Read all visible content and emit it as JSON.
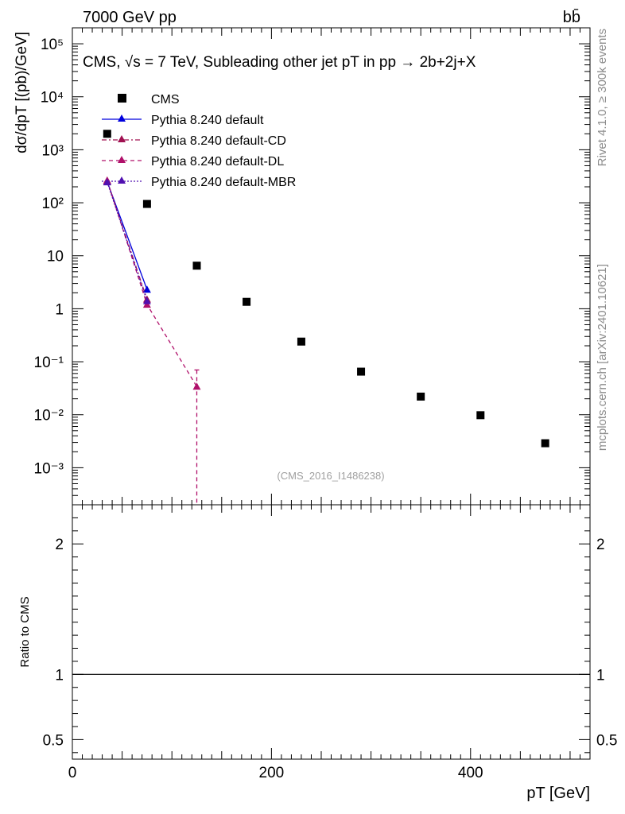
{
  "header": {
    "energy_label": "7000 GeV pp",
    "process_label": "bb̄"
  },
  "side_text": {
    "rivet": "Rivet 4.1.0, ≥ 300k events",
    "mcplots": "mcplots.cern.ch [arXiv:2401.10621]"
  },
  "chart_data": {
    "type": "scatter",
    "title": "CMS, √s = 7 TeV, Subleading other jet pT in pp → 2b+2j+X",
    "xlabel": "pT [GeV]",
    "ylabel": "dσ/dpT [(pb)/GeV]",
    "ylabel_ratio": "Ratio to CMS",
    "watermark": "(CMS_2016_I1486238)",
    "xlim": [
      0,
      520
    ],
    "ylim": [
      0.0002,
      200000
    ],
    "yscale": "log",
    "ratio_ylim": [
      0.35,
      2.3
    ],
    "x_ticks": [
      {
        "value": 0,
        "label": "0"
      },
      {
        "value": 200,
        "label": "200"
      },
      {
        "value": 400,
        "label": "400"
      }
    ],
    "y_ticks": [
      {
        "value": 0.001,
        "label": "10⁻³"
      },
      {
        "value": 0.01,
        "label": "10⁻²"
      },
      {
        "value": 0.1,
        "label": "10⁻¹"
      },
      {
        "value": 1,
        "label": "1"
      },
      {
        "value": 10,
        "label": "10"
      },
      {
        "value": 100,
        "label": "10²"
      },
      {
        "value": 1000,
        "label": "10³"
      },
      {
        "value": 10000,
        "label": "10⁴"
      },
      {
        "value": 100000,
        "label": "10⁵"
      }
    ],
    "ratio_ticks": [
      {
        "value": 0.5,
        "label": "0.5"
      },
      {
        "value": 1,
        "label": "1"
      },
      {
        "value": 2,
        "label": "2"
      }
    ],
    "legend_position": "top-left",
    "series": [
      {
        "name": "CMS",
        "style": "marker",
        "color": "#000000",
        "x": [
          35,
          75,
          125,
          175,
          230,
          290,
          350,
          410,
          475
        ],
        "y": [
          2000,
          95,
          6.5,
          1.35,
          0.24,
          0.065,
          0.022,
          0.0098,
          0.0029
        ]
      },
      {
        "name": "Pythia 8.240 default",
        "style": "solid",
        "color": "#0000dd",
        "x": [
          35,
          75
        ],
        "y": [
          250,
          2.3
        ]
      },
      {
        "name": "Pythia 8.240 default-CD",
        "style": "dashdot",
        "color": "#a01050",
        "x": [
          35,
          75
        ],
        "y": [
          255,
          1.5
        ]
      },
      {
        "name": "Pythia 8.240 default-DL",
        "style": "dashed",
        "color": "#b0106a",
        "x": [
          35,
          75,
          125
        ],
        "y": [
          265,
          1.2,
          0.034
        ],
        "error_bar": {
          "x": 125,
          "up": 0.07,
          "down": 0.0002
        }
      },
      {
        "name": "Pythia 8.240 default-MBR",
        "style": "dotted",
        "color": "#5010b0",
        "x": [
          35,
          75
        ],
        "y": [
          245,
          1.4
        ]
      }
    ]
  }
}
